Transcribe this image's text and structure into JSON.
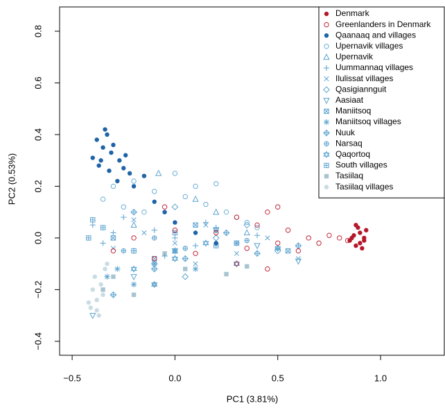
{
  "chart_data": {
    "type": "scatter",
    "x_label": "PC1 (3.81%)",
    "y_label": "PC2 (0.53%)",
    "xlim": [
      -0.561,
      1.31
    ],
    "ylim": [
      -0.454,
      0.894
    ],
    "xticks": [
      {
        "value": -0.5,
        "label": "−0.5"
      },
      {
        "value": 0,
        "label": "0.0"
      },
      0.5,
      {
        "value": 1,
        "label": "1.0"
      }
    ],
    "yticks": [
      {
        "value": -0.4,
        "label": "−0.4"
      },
      {
        "value": -0.2,
        "label": "−0.2"
      },
      {
        "value": 0,
        "label": "0.0"
      },
      0.2,
      0.4,
      0.6,
      0.8
    ],
    "legend": "top-right",
    "series": [
      {
        "name": "Denmark",
        "color": "#b5182b",
        "marker": "dot",
        "x": [
          0.86,
          0.88,
          0.9,
          0.92,
          0.89,
          0.91,
          0.87,
          0.93,
          0.9,
          0.88,
          0.92,
          0.85
        ],
        "values": [
          0.0,
          -0.03,
          0.02,
          -0.01,
          0.04,
          -0.04,
          0.01,
          0.03,
          -0.02,
          0.05,
          0.0,
          -0.01
        ]
      },
      {
        "name": "Greenlanders in Denmark",
        "color": "#c0283a",
        "marker": "circle",
        "x": [
          -0.3,
          -0.2,
          -0.1,
          0.0,
          0.1,
          0.2,
          0.3,
          0.35,
          0.4,
          0.45,
          0.5,
          0.55,
          0.6,
          0.65,
          0.7,
          0.75,
          0.8,
          0.84,
          0.5,
          0.3,
          -0.05,
          0.45
        ],
        "values": [
          -0.05,
          0.0,
          -0.08,
          0.03,
          -0.06,
          0.02,
          0.08,
          -0.04,
          0.05,
          0.1,
          -0.02,
          0.03,
          -0.05,
          0.0,
          -0.02,
          0.01,
          0.0,
          -0.01,
          0.12,
          -0.1,
          0.12,
          -0.12
        ]
      },
      {
        "name": "Qaanaaq and villages",
        "color": "#1f63a8",
        "marker": "dot",
        "x": [
          -0.38,
          -0.35,
          -0.33,
          -0.36,
          -0.31,
          -0.34,
          -0.37,
          -0.3,
          -0.27,
          -0.25,
          -0.22,
          -0.28,
          -0.24,
          -0.2,
          -0.15,
          -0.1,
          0.0,
          -0.05,
          0.1,
          0.2,
          -0.4,
          -0.32
        ],
        "values": [
          0.38,
          0.35,
          0.4,
          0.3,
          0.33,
          0.42,
          0.28,
          0.36,
          0.3,
          0.27,
          0.25,
          0.22,
          0.32,
          0.2,
          0.24,
          0.14,
          0.06,
          0.1,
          0.02,
          -0.02,
          0.31,
          0.26
        ]
      },
      {
        "name": "Upernavik villages",
        "color": "#6aaed6",
        "marker": "circle",
        "x": [
          -0.35,
          -0.3,
          -0.2,
          -0.1,
          0.0,
          0.05,
          0.1,
          0.15,
          0.2,
          0.25,
          0.3,
          -0.25,
          -0.15,
          0.35,
          0.4
        ],
        "values": [
          0.15,
          0.2,
          0.22,
          0.18,
          0.25,
          0.16,
          0.2,
          0.13,
          0.21,
          0.1,
          0.08,
          0.12,
          0.1,
          0.06,
          0.04
        ]
      },
      {
        "name": "Upernavik",
        "color": "#5ba3cf",
        "marker": "triangle",
        "x": [
          -0.08,
          0.1,
          0.2,
          -0.2,
          0.0,
          0.35
        ],
        "values": [
          0.25,
          0.15,
          0.1,
          0.05,
          -0.05,
          0.02
        ]
      },
      {
        "name": "Uummannaq villages",
        "color": "#5ba3cf",
        "marker": "plus",
        "x": [
          -0.4,
          -0.35,
          -0.3,
          -0.2,
          -0.1,
          0.0,
          0.1,
          0.2,
          0.3,
          0.4,
          0.5,
          -0.25,
          0.15,
          -0.05
        ],
        "values": [
          0.05,
          -0.02,
          0.02,
          -0.05,
          0.03,
          0.0,
          -0.03,
          0.04,
          -0.02,
          0.01,
          -0.04,
          0.08,
          0.06,
          -0.07
        ]
      },
      {
        "name": "Ilulissat villages",
        "color": "#5ba3cf",
        "marker": "cross",
        "x": [
          -0.3,
          -0.15,
          0.0,
          0.15,
          0.3,
          0.45,
          0.6,
          -0.2,
          0.1
        ],
        "values": [
          -0.04,
          0.02,
          -0.02,
          0.05,
          -0.06,
          0.0,
          -0.08,
          0.07,
          -0.1
        ]
      },
      {
        "name": "Qasigiannguit",
        "color": "#5ba3cf",
        "marker": "diamond",
        "x": [
          -0.1,
          0.05,
          0.2,
          0.35,
          0.5,
          0.0
        ],
        "values": [
          -0.1,
          -0.15,
          0.0,
          0.05,
          -0.05,
          0.12
        ]
      },
      {
        "name": "Aasiaat",
        "color": "#5ba3cf",
        "marker": "triangle-down",
        "x": [
          -0.4,
          -0.2,
          0.0,
          0.2,
          0.4,
          0.6
        ],
        "values": [
          -0.3,
          -0.15,
          -0.05,
          0.03,
          -0.03,
          -0.09
        ]
      },
      {
        "name": "Maniitsoq",
        "color": "#5ba3cf",
        "marker": "square-x",
        "x": [
          -0.3,
          -0.1,
          0.1,
          0.3,
          0.55
        ],
        "values": [
          0.0,
          -0.08,
          0.05,
          -0.02,
          -0.05
        ]
      },
      {
        "name": "Maniitsoq villages",
        "color": "#5ba3cf",
        "marker": "asterisk",
        "x": [
          -0.33,
          -0.28,
          -0.2,
          -0.1,
          0.0,
          0.1
        ],
        "values": [
          -0.15,
          -0.12,
          -0.18,
          -0.1,
          -0.05,
          -0.12
        ]
      },
      {
        "name": "Nuuk",
        "color": "#5ba3cf",
        "marker": "diamond-plus",
        "x": [
          -0.3,
          -0.1,
          0.05,
          0.25,
          0.4,
          0.6,
          -0.2
        ],
        "values": [
          -0.22,
          -0.12,
          -0.08,
          0.02,
          -0.06,
          -0.03,
          0.1
        ]
      },
      {
        "name": "Narsaq",
        "color": "#5ba3cf",
        "marker": "circle-plus",
        "x": [
          -0.25,
          -0.1,
          0.05,
          0.2,
          0.35
        ],
        "values": [
          -0.05,
          0.0,
          -0.04,
          0.03,
          -0.01
        ]
      },
      {
        "name": "Qaqortoq",
        "color": "#5ba3cf",
        "marker": "star",
        "x": [
          -0.2,
          -0.1,
          0.0,
          0.15,
          0.3,
          0.5
        ],
        "values": [
          -0.12,
          -0.18,
          -0.08,
          -0.02,
          -0.1,
          -0.04
        ]
      },
      {
        "name": "South villages",
        "color": "#5ba3cf",
        "marker": "square-plus",
        "x": [
          -0.42,
          -0.35,
          -0.2,
          0.0,
          0.2,
          -0.4
        ],
        "values": [
          0.0,
          0.04,
          -0.05,
          0.02,
          -0.03,
          0.07
        ]
      },
      {
        "name": "Tasiilaq",
        "color": "#a9c4d1",
        "marker": "square",
        "x": [
          -0.35,
          -0.3,
          -0.2,
          -0.1,
          0.05,
          0.25,
          0.35,
          -0.05
        ],
        "values": [
          -0.2,
          -0.15,
          -0.22,
          -0.18,
          -0.12,
          -0.14,
          -0.11,
          -0.06
        ]
      },
      {
        "name": "Tasiilaq villages",
        "color": "#c9dbe3",
        "marker": "dot",
        "x": [
          -0.42,
          -0.4,
          -0.38,
          -0.37,
          -0.35,
          -0.39,
          -0.36,
          -0.41,
          -0.34,
          -0.38,
          -0.33
        ],
        "values": [
          -0.25,
          -0.2,
          -0.28,
          -0.3,
          -0.22,
          -0.15,
          -0.18,
          -0.27,
          -0.12,
          -0.24,
          -0.1
        ]
      }
    ]
  }
}
